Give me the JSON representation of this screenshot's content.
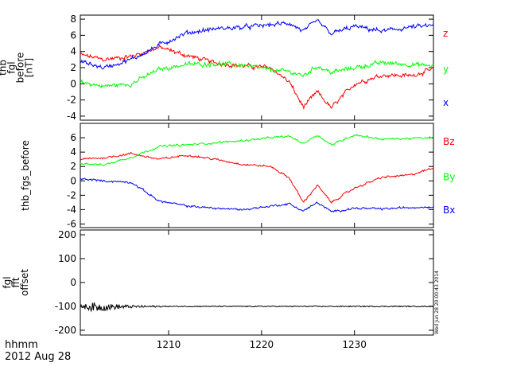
{
  "chart_data": [
    {
      "type": "line",
      "panel": "thb_fgl_before",
      "ylabel_lines": [
        "thb",
        "fgl",
        "before",
        "[nT]"
      ],
      "ylim": [
        -4.5,
        8.5
      ],
      "yticks": [
        -4,
        -2,
        0,
        2,
        4,
        6,
        8
      ],
      "legend_placement": "right",
      "series": [
        {
          "name": "z",
          "color": "#ff0000",
          "x": [
            1200.5,
            1203,
            1206,
            1209,
            1212,
            1215,
            1218,
            1221,
            1223,
            1224.5,
            1226,
            1227.5,
            1230,
            1233,
            1236,
            1238.5
          ],
          "y": [
            3.6,
            3.0,
            3.4,
            4.5,
            3.5,
            2.6,
            2.2,
            2.0,
            0.2,
            -2.9,
            -1.0,
            -3.0,
            0.0,
            1.1,
            1.0,
            1.8
          ]
        },
        {
          "name": "y",
          "color": "#00ff00",
          "x": [
            1200.5,
            1203,
            1206,
            1209,
            1212,
            1215,
            1218,
            1221,
            1223,
            1224.5,
            1226,
            1227.5,
            1230,
            1233,
            1236,
            1238.5
          ],
          "y": [
            0.2,
            -0.3,
            0.0,
            1.8,
            2.4,
            2.5,
            2.3,
            1.7,
            1.5,
            1.0,
            2.2,
            1.4,
            2.0,
            2.6,
            2.4,
            2.2
          ]
        },
        {
          "name": "x",
          "color": "#0000ff",
          "x": [
            1200.5,
            1203,
            1206,
            1209,
            1212,
            1215,
            1218,
            1221,
            1223,
            1224.5,
            1226,
            1227.5,
            1230,
            1233,
            1236,
            1238.5
          ],
          "y": [
            2.8,
            2.0,
            3.0,
            4.8,
            6.3,
            6.8,
            7.0,
            7.3,
            7.5,
            6.5,
            7.8,
            6.2,
            7.1,
            6.5,
            7.0,
            7.2
          ]
        }
      ]
    },
    {
      "type": "line",
      "panel": "thb_fgs_before",
      "ylabel_lines": [
        "thb_fgs_before"
      ],
      "ylim": [
        -6.5,
        8
      ],
      "yticks": [
        -6,
        -4,
        -2,
        0,
        2,
        4,
        6
      ],
      "legend_placement": "right",
      "series": [
        {
          "name": "Bz",
          "color": "#ff0000",
          "x": [
            1200.5,
            1203,
            1206,
            1209,
            1212,
            1215,
            1218,
            1221,
            1223,
            1224.5,
            1226,
            1227.5,
            1230,
            1233,
            1236,
            1238.5
          ],
          "y": [
            3.0,
            3.2,
            3.8,
            3.0,
            3.6,
            3.0,
            2.3,
            2.0,
            0.4,
            -3.0,
            -0.6,
            -3.0,
            -1.0,
            0.5,
            0.8,
            1.8
          ]
        },
        {
          "name": "By",
          "color": "#00ff00",
          "x": [
            1200.5,
            1203,
            1206,
            1209,
            1212,
            1215,
            1218,
            1221,
            1223,
            1224.5,
            1226,
            1227.5,
            1230,
            1233,
            1236,
            1238.5
          ],
          "y": [
            2.5,
            2.2,
            3.3,
            4.8,
            5.0,
            5.3,
            5.6,
            6.0,
            6.2,
            5.2,
            6.4,
            5.0,
            6.4,
            5.8,
            5.9,
            6.0
          ]
        },
        {
          "name": "Bx",
          "color": "#0000ff",
          "x": [
            1200.5,
            1203,
            1206,
            1209,
            1212,
            1215,
            1218,
            1221,
            1223,
            1224.5,
            1226,
            1227.5,
            1230,
            1233,
            1236,
            1238.5
          ],
          "y": [
            0.3,
            0.0,
            -0.2,
            -2.8,
            -3.5,
            -3.8,
            -4.0,
            -3.5,
            -3.2,
            -4.2,
            -3.0,
            -4.3,
            -3.8,
            -3.9,
            -3.7,
            -3.6
          ]
        }
      ]
    },
    {
      "type": "line",
      "panel": "fgl_fft_offset",
      "ylabel_lines": [
        "fgl",
        "fft",
        "offset"
      ],
      "ylim": [
        -220,
        220
      ],
      "yticks": [
        -200,
        -100,
        0,
        100,
        200
      ],
      "series": [
        {
          "name": "",
          "color": "#000000",
          "x": [
            1200.5,
            1202,
            1204,
            1206,
            1210,
            1215,
            1220,
            1225,
            1230,
            1235,
            1238.5
          ],
          "y": [
            -100,
            -103,
            -102,
            -101,
            -100,
            -100,
            -100,
            -100,
            -100,
            -100,
            -100
          ],
          "noise_amplitude": [
            0.3,
            1.0,
            0.6,
            0.3,
            0.1,
            0.1,
            0.1,
            0.1,
            0.1,
            0.1,
            0.1
          ]
        }
      ]
    }
  ],
  "x_axis": {
    "range": [
      1200.5,
      1238.5
    ],
    "ticks": [
      1210,
      1220,
      1230
    ],
    "tick_labels": [
      "1210",
      "1220",
      "1230"
    ],
    "unit_label": "hhmm",
    "date_label": "2012 Aug 28"
  },
  "timestamp_label": "Wed Jun 28 20:00:43 2014"
}
